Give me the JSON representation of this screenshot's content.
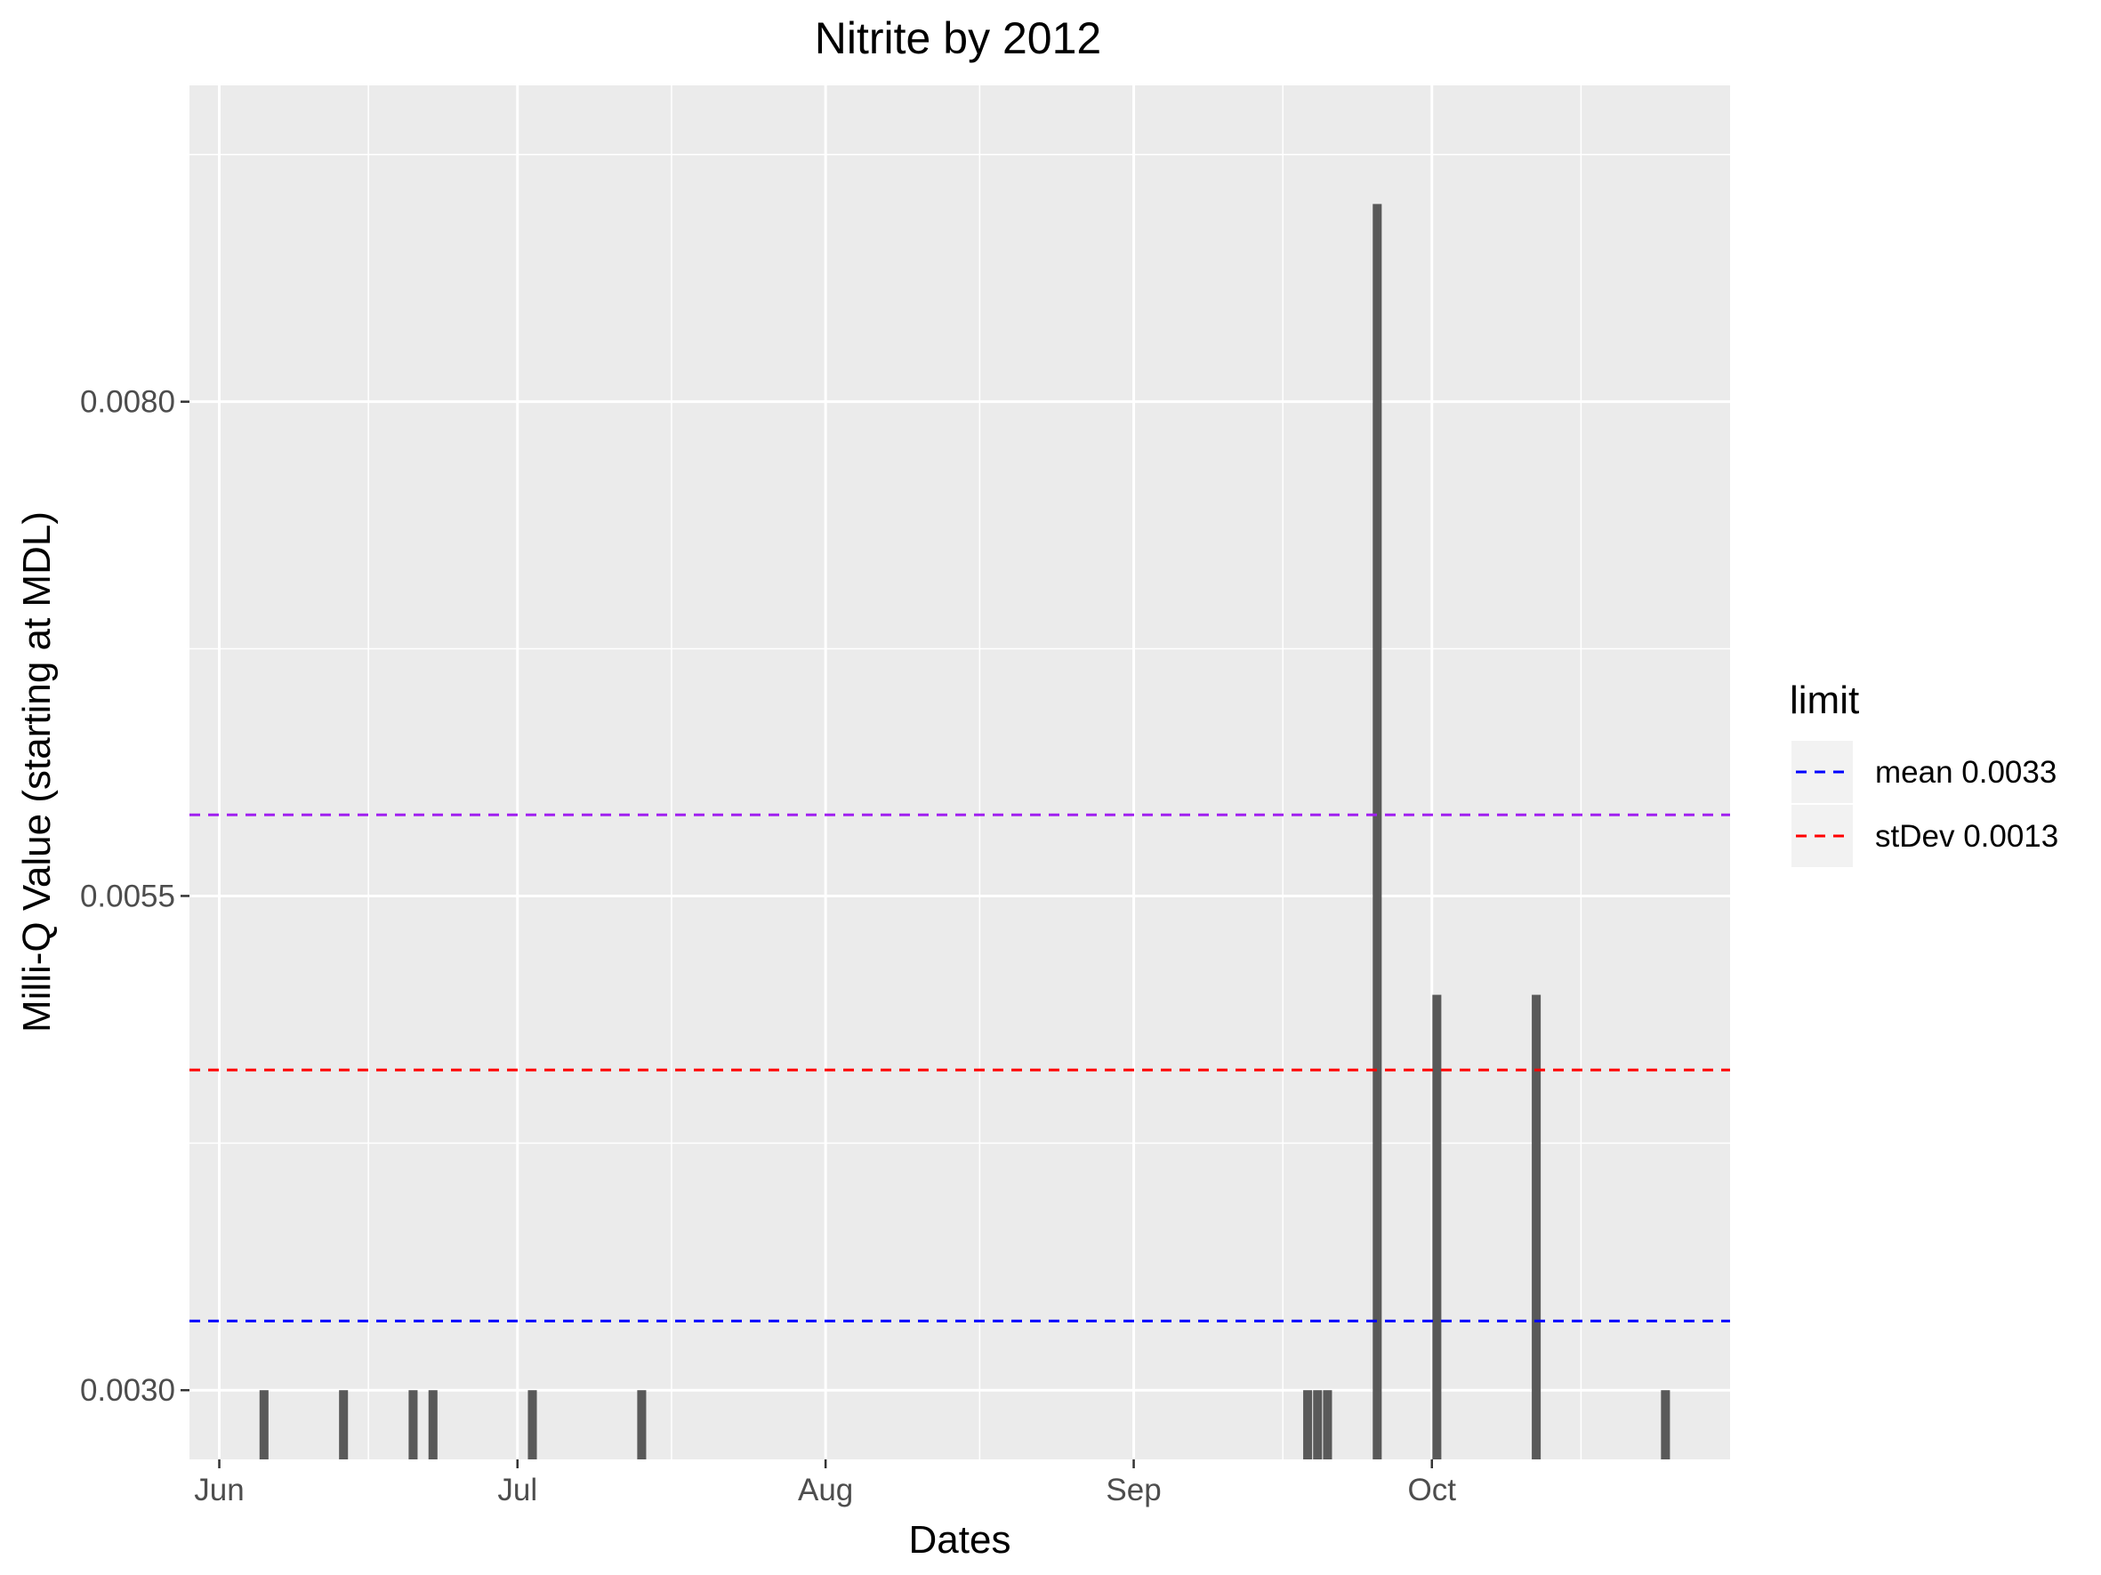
{
  "chart_data": {
    "type": "bar",
    "title": "Nitrite by 2012",
    "xlabel": "Dates",
    "ylabel": "Milli-Q Value (starting at MDL)",
    "x_range": [
      "2012-05-29",
      "2012-10-31"
    ],
    "ylim": [
      0.00265,
      0.0096
    ],
    "y_ticks": [
      0.003,
      0.0055,
      0.008
    ],
    "y_tick_labels": [
      "0.0030",
      "0.0055",
      "0.0080"
    ],
    "x_ticks": [
      "2012-06-01",
      "2012-07-01",
      "2012-08-01",
      "2012-09-01",
      "2012-10-01"
    ],
    "x_tick_labels": [
      "Jun",
      "Jul",
      "Aug",
      "Sep",
      "Oct"
    ],
    "grid": true,
    "bar_color": "#595959",
    "panel_background": "#ebebeb",
    "bars": [
      {
        "date": "2012-06-05",
        "value": 0.003
      },
      {
        "date": "2012-06-13",
        "value": 0.003
      },
      {
        "date": "2012-06-20",
        "value": 0.003
      },
      {
        "date": "2012-06-22",
        "value": 0.003
      },
      {
        "date": "2012-07-02",
        "value": 0.003
      },
      {
        "date": "2012-07-13",
        "value": 0.003
      },
      {
        "date": "2012-09-18",
        "value": 0.003
      },
      {
        "date": "2012-09-19",
        "value": 0.003
      },
      {
        "date": "2012-09-20",
        "value": 0.003
      },
      {
        "date": "2012-09-25",
        "value": 0.009
      },
      {
        "date": "2012-10-01",
        "value": 0.005
      },
      {
        "date": "2012-10-11",
        "value": 0.005
      },
      {
        "date": "2012-10-24",
        "value": 0.003
      }
    ],
    "reference_lines": [
      {
        "value": 0.00335,
        "color": "#0000ff",
        "style": "dashed"
      },
      {
        "value": 0.00462,
        "color": "#ff0000",
        "style": "dashed"
      },
      {
        "value": 0.00591,
        "color": "#a020f0",
        "style": "dashed"
      }
    ],
    "legend": {
      "title": "limit",
      "placement": "right",
      "entries": [
        {
          "label": "mean 0.0033",
          "color": "#0000ff"
        },
        {
          "label": "stDev 0.0013",
          "color": "#ff0000"
        }
      ]
    }
  }
}
